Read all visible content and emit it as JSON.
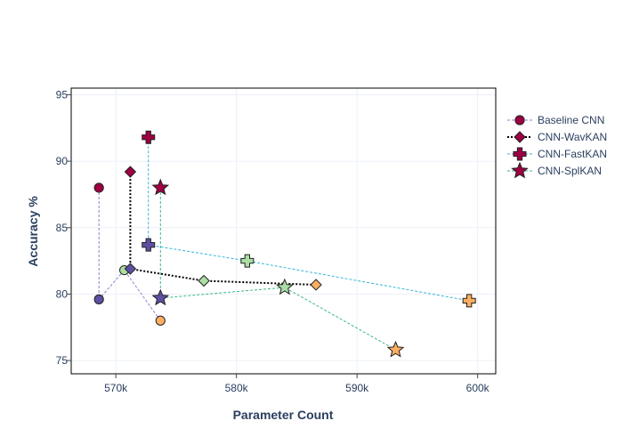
{
  "chart_data": {
    "type": "scatter",
    "title": "",
    "xlabel": "Parameter Count",
    "ylabel": "Accuracy %",
    "xlim": [
      566300,
      601500
    ],
    "ylim": [
      74,
      95.5
    ],
    "xticks": [
      570000,
      580000,
      590000,
      600000
    ],
    "xtick_labels": [
      "570k",
      "580k",
      "590k",
      "600k"
    ],
    "yticks": [
      75,
      80,
      85,
      90,
      95
    ],
    "ytick_labels": [
      "75",
      "80",
      "85",
      "90",
      "95"
    ],
    "grid": true,
    "legend_position": "top-right",
    "series": [
      {
        "name": "Baseline CNN",
        "marker": "circle",
        "line_color": "#8c7fd1",
        "line_dash": "dash",
        "points": [
          {
            "x": 568600,
            "y": 88.0,
            "color": "#9e0142"
          },
          {
            "x": 568600,
            "y": 79.6,
            "color": "#5e4fa2"
          },
          {
            "x": 570700,
            "y": 81.8,
            "color": "#abdda4"
          },
          {
            "x": 573700,
            "y": 78.0,
            "color": "#fdae61"
          }
        ]
      },
      {
        "name": "CNN-WavKAN",
        "marker": "diamond",
        "line_color": "#000000",
        "line_dash": "dot",
        "points": [
          {
            "x": 571200,
            "y": 89.2,
            "color": "#9e0142"
          },
          {
            "x": 571200,
            "y": 81.9,
            "color": "#5e4fa2"
          },
          {
            "x": 577300,
            "y": 81.0,
            "color": "#abdda4"
          },
          {
            "x": 586600,
            "y": 80.7,
            "color": "#fdae61"
          }
        ]
      },
      {
        "name": "CNN-FastKAN",
        "marker": "cross",
        "line_color": "#33b5d6",
        "line_dash": "dash",
        "points": [
          {
            "x": 572700,
            "y": 91.8,
            "color": "#9e0142"
          },
          {
            "x": 572700,
            "y": 83.7,
            "color": "#5e4fa2"
          },
          {
            "x": 580900,
            "y": 82.5,
            "color": "#abdda4"
          },
          {
            "x": 599300,
            "y": 79.5,
            "color": "#fdae61"
          }
        ]
      },
      {
        "name": "CNN-SplKAN",
        "marker": "star",
        "line_color": "#3cb68a",
        "line_dash": "dash",
        "points": [
          {
            "x": 573700,
            "y": 88.0,
            "color": "#9e0142"
          },
          {
            "x": 573700,
            "y": 79.7,
            "color": "#5e4fa2"
          },
          {
            "x": 584000,
            "y": 80.5,
            "color": "#abdda4"
          },
          {
            "x": 593200,
            "y": 75.8,
            "color": "#fdae61"
          }
        ]
      }
    ]
  }
}
